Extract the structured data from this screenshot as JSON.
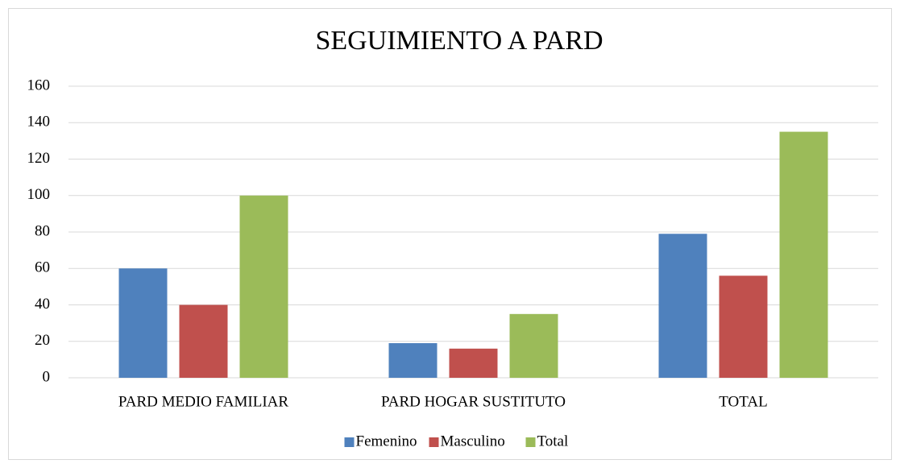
{
  "chart_data": {
    "type": "bar",
    "title": "SEGUIMIENTO A PARD",
    "categories": [
      "PARD MEDIO FAMILIAR",
      "PARD HOGAR SUSTITUTO",
      "TOTAL"
    ],
    "series": [
      {
        "name": "Femenino",
        "color": "#4f81bd",
        "values": [
          60,
          19,
          79
        ]
      },
      {
        "name": "Masculino",
        "color": "#c0504d",
        "values": [
          40,
          16,
          56
        ]
      },
      {
        "name": "Total",
        "color": "#9bbb59",
        "values": [
          100,
          35,
          135
        ]
      }
    ],
    "ylim": [
      0,
      160
    ],
    "yticks": [
      0,
      20,
      40,
      60,
      80,
      100,
      120,
      140,
      160
    ],
    "grid": true,
    "legend": "bottom"
  }
}
